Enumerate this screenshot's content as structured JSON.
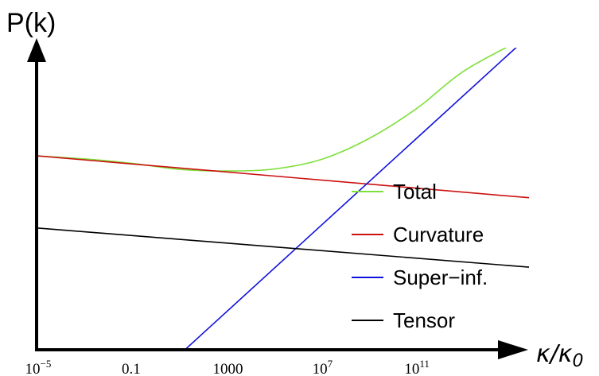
{
  "chart_data": {
    "type": "line",
    "title": "",
    "ylabel": "P(k)",
    "xlabel_main": "κ/κ",
    "xlabel_sub": "0",
    "x_scale": "log",
    "xlim_log10": [
      -5,
      15.7
    ],
    "ylim": [
      0,
      10
    ],
    "grid": false,
    "legend_position": "bottom-right",
    "x_ticks": [
      {
        "log10": -5,
        "label": "10",
        "sup": "−5"
      },
      {
        "log10": -1,
        "label": "0.1",
        "sup": ""
      },
      {
        "log10": 3,
        "label": "1000",
        "sup": ""
      },
      {
        "log10": 7,
        "label": "10",
        "sup": "7"
      },
      {
        "log10": 11,
        "label": "10",
        "sup": "11"
      }
    ],
    "series": [
      {
        "name": "Total",
        "color": "#7fe03c",
        "x_log10": [
          -5,
          -3,
          -1,
          1,
          3,
          5,
          7,
          9,
          11,
          13,
          15.7
        ],
        "y": [
          6.45,
          6.35,
          6.2,
          6.0,
          5.95,
          6.02,
          6.35,
          7.05,
          8.05,
          9.3,
          10.45
        ]
      },
      {
        "name": "Curvature",
        "color": "#cc1111",
        "x_log10": [
          -5,
          15.7
        ],
        "y": [
          6.45,
          5.06
        ]
      },
      {
        "name": "Super−inf.",
        "color": "#1111dd",
        "x_log10": [
          -0.2,
          15.7
        ],
        "y": [
          -1.0,
          10.45
        ]
      },
      {
        "name": "Tensor",
        "color": "#000000",
        "x_log10": [
          -5,
          15.7
        ],
        "y": [
          4.05,
          2.75
        ]
      }
    ]
  }
}
